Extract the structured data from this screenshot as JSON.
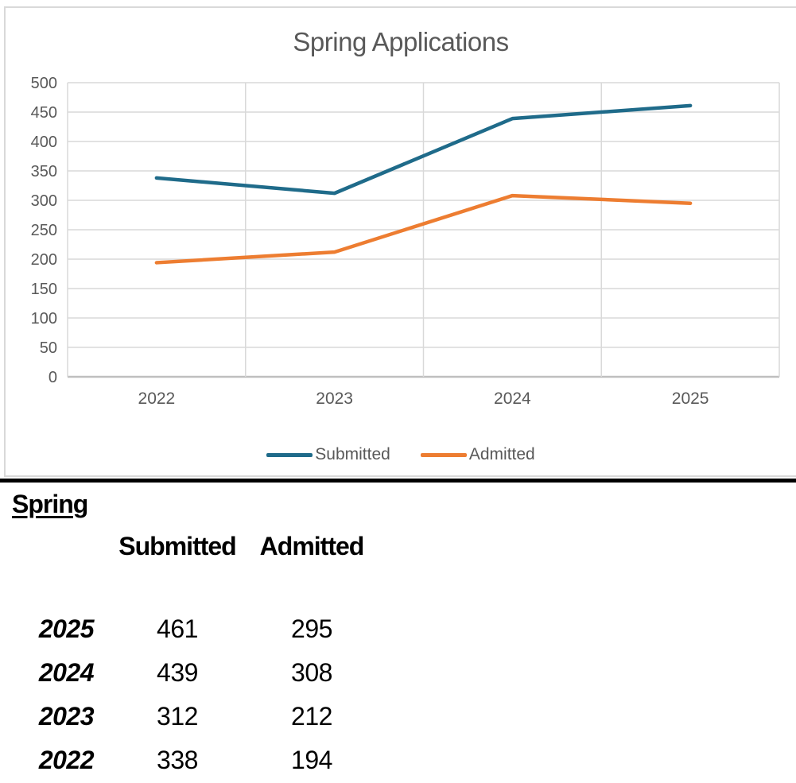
{
  "chart_data": {
    "type": "line",
    "title": "Spring Applications",
    "categories": [
      "2022",
      "2023",
      "2024",
      "2025"
    ],
    "series": [
      {
        "name": "Submitted",
        "values": [
          338,
          312,
          439,
          461
        ],
        "color": "#1F6B8A"
      },
      {
        "name": "Admitted",
        "values": [
          194,
          212,
          308,
          295
        ],
        "color": "#ED7D31"
      }
    ],
    "xlabel": "",
    "ylabel": "",
    "ylim": [
      0,
      500
    ],
    "ytick_step": 50,
    "grid": true,
    "legend_position": "bottom",
    "axis_text_color": "#595959",
    "gridline_color": "#D9D9D9",
    "axis_line_color": "#BFBFBF"
  },
  "table": {
    "title": "Spring",
    "columns": [
      "Submitted",
      "Admitted"
    ],
    "rows": [
      {
        "year": "2025",
        "submitted": "461",
        "admitted": "295"
      },
      {
        "year": "2024",
        "submitted": "439",
        "admitted": "308"
      },
      {
        "year": "2023",
        "submitted": "312",
        "admitted": "212"
      },
      {
        "year": "2022",
        "submitted": "338",
        "admitted": "194"
      }
    ]
  }
}
